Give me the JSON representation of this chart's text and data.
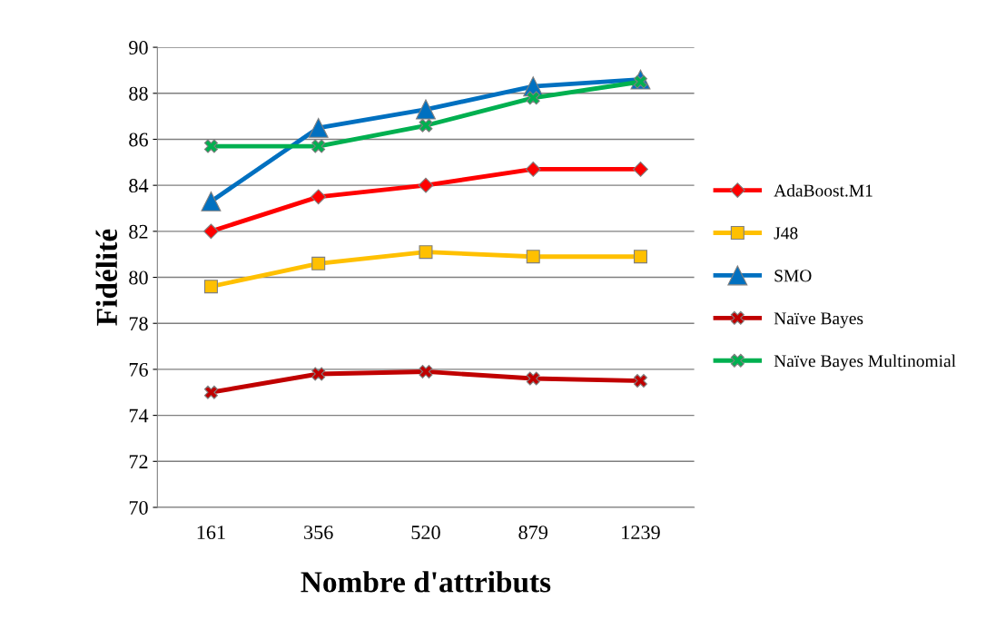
{
  "chart_data": {
    "type": "line",
    "xlabel": "Nombre d'attributs",
    "ylabel": "Fidélité",
    "categories": [
      "161",
      "356",
      "520",
      "879",
      "1239"
    ],
    "ylim": [
      70,
      90
    ],
    "yticks": [
      70,
      72,
      74,
      76,
      78,
      80,
      82,
      84,
      86,
      88,
      90
    ],
    "grid": "y",
    "legend": "right",
    "series": [
      {
        "name": "AdaBoost.M1",
        "color": "#ff0000",
        "marker": "diamond",
        "values": [
          82.0,
          83.5,
          84.0,
          84.7,
          84.7
        ]
      },
      {
        "name": "J48",
        "color": "#ffc000",
        "marker": "square",
        "values": [
          79.6,
          80.6,
          81.1,
          80.9,
          80.9
        ]
      },
      {
        "name": "SMO",
        "color": "#0070c0",
        "marker": "triangle",
        "values": [
          83.3,
          86.5,
          87.3,
          88.3,
          88.6
        ]
      },
      {
        "name": "Naïve Bayes",
        "color": "#c00000",
        "marker": "cross",
        "values": [
          75.0,
          75.8,
          75.9,
          75.6,
          75.5
        ]
      },
      {
        "name": "Naïve Bayes Multinomial",
        "color": "#00b050",
        "marker": "cross",
        "values": [
          85.7,
          85.7,
          86.6,
          87.8,
          88.5
        ]
      }
    ]
  }
}
